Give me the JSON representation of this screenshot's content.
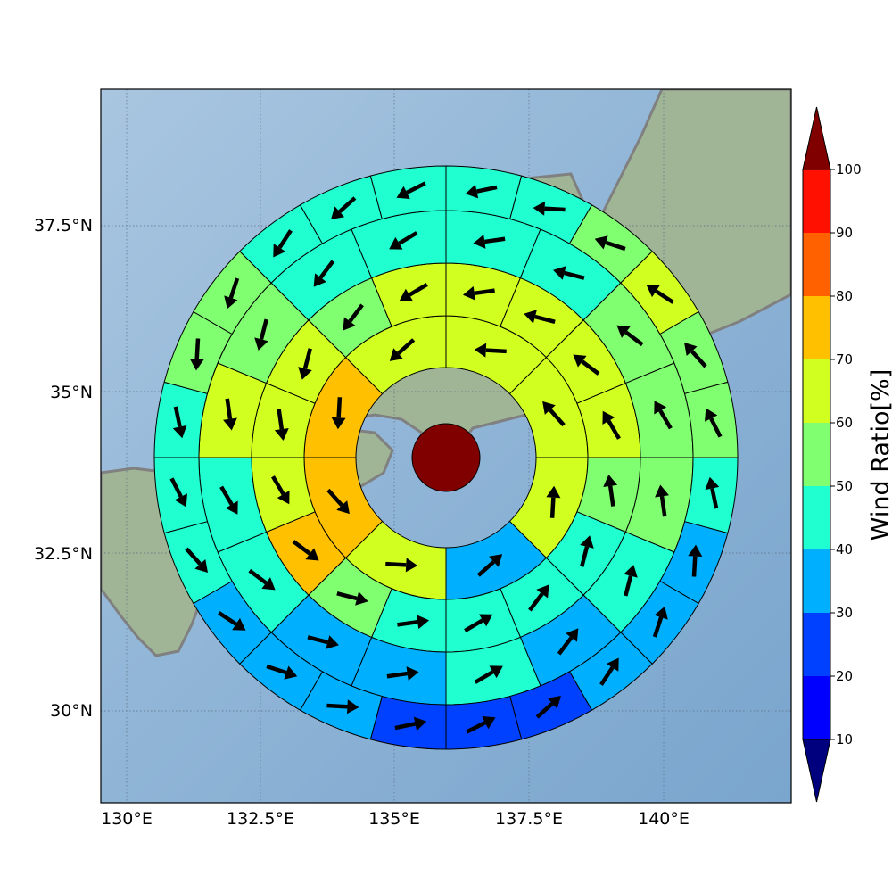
{
  "map": {
    "x_ticks": [
      "130°E",
      "132.5°E",
      "135°E",
      "137.5°E",
      "140°E"
    ],
    "y_ticks": [
      "37.5°N",
      "35°N",
      "32.5°N",
      "30°N"
    ],
    "lon_range": [
      129.5,
      142.3
    ],
    "lat_range": [
      28.3,
      39.4
    ],
    "ocean_color": "#8fb4d6",
    "land_color": "#9fb596",
    "coastline_color": "#808080"
  },
  "colorbar": {
    "label": "Wind Ratio[%]",
    "ticks": [
      "10",
      "20",
      "30",
      "40",
      "50",
      "60",
      "70",
      "80",
      "90",
      "100"
    ],
    "levels": [
      10,
      20,
      30,
      40,
      50,
      60,
      70,
      80,
      90,
      100
    ],
    "colors": [
      "#0000ff",
      "#0040ff",
      "#00b0ff",
      "#20ffd0",
      "#80ff70",
      "#d0ff20",
      "#ffc000",
      "#ff6000",
      "#ff1000"
    ],
    "under_color": "#00007f",
    "over_color": "#800000"
  },
  "chart_data": {
    "type": "polar-grid",
    "center_color": "#800000",
    "rings": [
      {
        "sectors": 8,
        "values": [
          65,
          62,
          65,
          35,
          65,
          72,
          72,
          65
        ]
      },
      {
        "sectors": 16,
        "values": [
          65,
          65,
          65,
          62,
          55,
          45,
          45,
          45,
          45,
          55,
          72,
          62,
          65,
          62,
          55,
          62
        ]
      },
      {
        "sectors": 16,
        "values": [
          45,
          45,
          55,
          55,
          55,
          45,
          35,
          45,
          35,
          35,
          45,
          45,
          62,
          55,
          45,
          45
        ]
      },
      {
        "sectors": 24,
        "values": [
          45,
          45,
          55,
          62,
          55,
          55,
          45,
          35,
          35,
          35,
          25,
          25,
          25,
          35,
          35,
          35,
          45,
          45,
          45,
          55,
          55,
          45,
          45,
          45
        ]
      },
      {
        "sectors": 24,
        "values": [
          35,
          45,
          55,
          55,
          35,
          35,
          25,
          25,
          25,
          25,
          25,
          25,
          25,
          35,
          35,
          35,
          45,
          45,
          35,
          35,
          35,
          35,
          45,
          35
        ]
      }
    ]
  }
}
